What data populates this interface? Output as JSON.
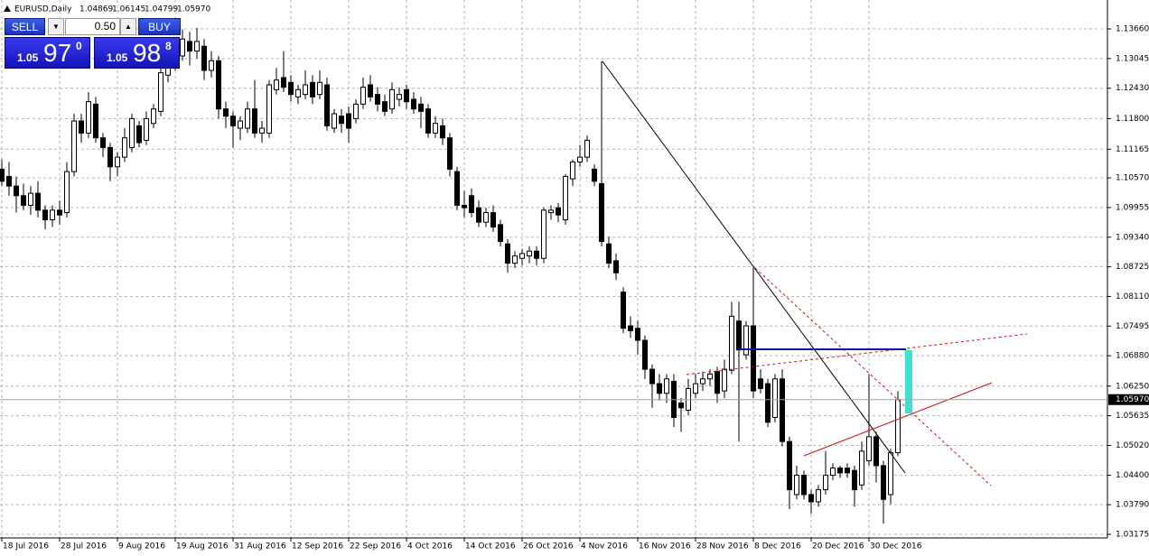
{
  "chart_data": {
    "type": "candlestick",
    "title": "EURUSD,Daily",
    "header_ohlc": [
      "1.04869",
      "1.06145",
      "1.04799",
      "1.05970"
    ],
    "current_price": {
      "value": 1.0597,
      "label": "1.05970"
    },
    "bull_color": "#ffffff",
    "bear_color": "#000000",
    "grid": true,
    "ylim": [
      1.031,
      1.1426
    ],
    "yticks": [
      {
        "value": 1.1366,
        "label": "1.13660"
      },
      {
        "value": 1.13045,
        "label": "1.13045"
      },
      {
        "value": 1.1243,
        "label": "1.12430"
      },
      {
        "value": 1.118,
        "label": "1.11800"
      },
      {
        "value": 1.11165,
        "label": "1.11165"
      },
      {
        "value": 1.1057,
        "label": "1.10570"
      },
      {
        "value": 1.09955,
        "label": "1.09955"
      },
      {
        "value": 1.0934,
        "label": "1.09340"
      },
      {
        "value": 1.08725,
        "label": "1.08725"
      },
      {
        "value": 1.0811,
        "label": "1.08110"
      },
      {
        "value": 1.07495,
        "label": "1.07495"
      },
      {
        "value": 1.0688,
        "label": "1.06880"
      },
      {
        "value": 1.0625,
        "label": "1.06250"
      },
      {
        "value": 1.05635,
        "label": "1.05635"
      },
      {
        "value": 1.0502,
        "label": "1.05020"
      },
      {
        "value": 1.044,
        "label": "1.04400"
      },
      {
        "value": 1.0379,
        "label": "1.03790"
      },
      {
        "value": 1.03175,
        "label": "1.03175"
      }
    ],
    "categories": [
      "18 Jul 2016",
      null,
      null,
      null,
      null,
      null,
      null,
      null,
      "28 Jul 2016",
      null,
      null,
      null,
      null,
      null,
      null,
      null,
      "9 Aug 2016",
      null,
      null,
      null,
      null,
      null,
      null,
      null,
      "19 Aug 2016",
      null,
      null,
      null,
      null,
      null,
      null,
      null,
      "31 Aug 2016",
      null,
      null,
      null,
      null,
      null,
      null,
      null,
      "12 Sep 2016",
      null,
      null,
      null,
      null,
      null,
      null,
      null,
      "22 Sep 2016",
      null,
      null,
      null,
      null,
      null,
      null,
      null,
      "4 Oct 2016",
      null,
      null,
      null,
      null,
      null,
      null,
      null,
      "14 Oct 2016",
      null,
      null,
      null,
      null,
      null,
      null,
      null,
      "26 Oct 2016",
      null,
      null,
      null,
      null,
      null,
      null,
      null,
      "4 Nov 2016",
      null,
      null,
      null,
      null,
      null,
      null,
      null,
      "16 Nov 2016",
      null,
      null,
      null,
      null,
      null,
      null,
      null,
      "28 Nov 2016",
      null,
      null,
      null,
      null,
      null,
      null,
      null,
      "8 Dec 2016",
      null,
      null,
      null,
      null,
      null,
      null,
      null,
      "20 Dec 2016",
      null,
      null,
      null,
      null,
      null,
      null,
      null,
      "30 Dec 2016",
      null,
      null,
      null,
      null
    ],
    "candles": [
      [
        1.1075,
        1.1095,
        1.104,
        1.105
      ],
      [
        1.106,
        1.109,
        1.102,
        1.104
      ],
      [
        1.104,
        1.106,
        1.0985,
        1.102
      ],
      [
        1.102,
        1.1045,
        1.099,
        1.1
      ],
      [
        1.1,
        1.104,
        1.098,
        1.1025
      ],
      [
        1.1025,
        1.105,
        1.0975,
        1.099
      ],
      [
        1.099,
        1.1,
        1.095,
        1.097
      ],
      [
        1.097,
        1.1,
        1.0955,
        1.099
      ],
      [
        1.099,
        1.101,
        1.096,
        1.098
      ],
      [
        1.0985,
        1.109,
        1.0975,
        1.107
      ],
      [
        1.107,
        1.119,
        1.106,
        1.1175
      ],
      [
        1.1175,
        1.119,
        1.113,
        1.115
      ],
      [
        1.115,
        1.1235,
        1.114,
        1.1215
      ],
      [
        1.121,
        1.1225,
        1.113,
        1.114
      ],
      [
        1.114,
        1.115,
        1.11,
        1.112
      ],
      [
        1.112,
        1.113,
        1.105,
        1.108
      ],
      [
        1.108,
        1.111,
        1.106,
        1.11
      ],
      [
        1.11,
        1.116,
        1.109,
        1.114
      ],
      [
        1.112,
        1.119,
        1.111,
        1.118
      ],
      [
        1.1165,
        1.1175,
        1.112,
        1.113
      ],
      [
        1.1135,
        1.1195,
        1.1125,
        1.118
      ],
      [
        1.117,
        1.121,
        1.116,
        1.12
      ],
      [
        1.1195,
        1.13,
        1.1185,
        1.1275
      ],
      [
        1.127,
        1.131,
        1.1255,
        1.13
      ],
      [
        1.1295,
        1.133,
        1.128,
        1.132
      ],
      [
        1.131,
        1.1365,
        1.13,
        1.1345
      ],
      [
        1.134,
        1.136,
        1.129,
        1.132
      ],
      [
        1.132,
        1.1368,
        1.1305,
        1.134
      ],
      [
        1.133,
        1.1345,
        1.126,
        1.128
      ],
      [
        1.128,
        1.132,
        1.1265,
        1.13
      ],
      [
        1.13,
        1.131,
        1.118,
        1.12
      ],
      [
        1.12,
        1.1215,
        1.116,
        1.1185
      ],
      [
        1.1185,
        1.1195,
        1.112,
        1.1165
      ],
      [
        1.116,
        1.1185,
        1.1135,
        1.1175
      ],
      [
        1.116,
        1.1215,
        1.115,
        1.12
      ],
      [
        1.12,
        1.126,
        1.114,
        1.115
      ],
      [
        1.115,
        1.1175,
        1.113,
        1.116
      ],
      [
        1.115,
        1.126,
        1.114,
        1.125
      ],
      [
        1.124,
        1.1285,
        1.123,
        1.126
      ],
      [
        1.1265,
        1.132,
        1.1235,
        1.1245
      ],
      [
        1.1255,
        1.127,
        1.1215,
        1.123
      ],
      [
        1.1225,
        1.125,
        1.121,
        1.124
      ],
      [
        1.123,
        1.128,
        1.122,
        1.125
      ],
      [
        1.1255,
        1.127,
        1.121,
        1.1225
      ],
      [
        1.123,
        1.128,
        1.122,
        1.1255
      ],
      [
        1.125,
        1.1265,
        1.1155,
        1.1165
      ],
      [
        1.116,
        1.12,
        1.115,
        1.119
      ],
      [
        1.1185,
        1.12,
        1.115,
        1.117
      ],
      [
        1.119,
        1.1205,
        1.113,
        1.116
      ],
      [
        1.118,
        1.122,
        1.117,
        1.121
      ],
      [
        1.121,
        1.1265,
        1.12,
        1.1245
      ],
      [
        1.125,
        1.127,
        1.1215,
        1.1225
      ],
      [
        1.123,
        1.1245,
        1.1195,
        1.121
      ],
      [
        1.1215,
        1.123,
        1.1185,
        1.1195
      ],
      [
        1.12,
        1.1255,
        1.119,
        1.124
      ],
      [
        1.122,
        1.1245,
        1.1205,
        1.123
      ],
      [
        1.124,
        1.125,
        1.12,
        1.1215
      ],
      [
        1.122,
        1.1235,
        1.119,
        1.12
      ],
      [
        1.121,
        1.1225,
        1.116,
        1.1195
      ],
      [
        1.12,
        1.121,
        1.114,
        1.115
      ],
      [
        1.115,
        1.1185,
        1.114,
        1.117
      ],
      [
        1.1165,
        1.118,
        1.1125,
        1.114
      ],
      [
        1.114,
        1.115,
        1.106,
        1.1075
      ],
      [
        1.107,
        1.108,
        1.099,
        1.1
      ],
      [
        1.1,
        1.103,
        1.0975,
        1.0995
      ],
      [
        1.102,
        1.1035,
        1.0975,
        1.0985
      ],
      [
        1.0995,
        1.101,
        1.0955,
        1.0965
      ],
      [
        1.0965,
        1.0995,
        1.0955,
        1.0985
      ],
      [
        1.0985,
        1.1,
        1.0945,
        1.0955
      ],
      [
        1.096,
        1.097,
        1.0915,
        1.0925
      ],
      [
        1.092,
        1.093,
        1.086,
        1.088
      ],
      [
        1.088,
        1.0905,
        1.087,
        1.0895
      ],
      [
        1.089,
        1.091,
        1.0875,
        1.09
      ],
      [
        1.0895,
        1.0915,
        1.088,
        1.0905
      ],
      [
        1.0905,
        1.0915,
        1.0875,
        1.089
      ],
      [
        1.089,
        1.0995,
        1.088,
        1.099
      ],
      [
        1.0985,
        1.1,
        1.097,
        1.099
      ],
      [
        1.0995,
        1.1005,
        1.0965,
        1.098
      ],
      [
        1.097,
        1.1065,
        1.096,
        1.106
      ],
      [
        1.1055,
        1.1095,
        1.104,
        1.109
      ],
      [
        1.109,
        1.1125,
        1.108,
        1.11
      ],
      [
        1.11,
        1.1145,
        1.109,
        1.1135
      ],
      [
        1.1075,
        1.1085,
        1.104,
        1.105
      ],
      [
        1.1045,
        1.1299,
        1.0915,
        1.0925
      ],
      [
        1.092,
        1.0935,
        1.087,
        1.088
      ],
      [
        1.0885,
        1.09,
        1.0845,
        1.086
      ],
      [
        1.082,
        1.083,
        1.0735,
        1.0745
      ],
      [
        1.075,
        1.077,
        1.0725,
        1.074
      ],
      [
        1.0745,
        1.076,
        1.069,
        1.072
      ],
      [
        1.072,
        1.073,
        1.064,
        1.066
      ],
      [
        1.066,
        1.067,
        1.058,
        1.063
      ],
      [
        1.063,
        1.065,
        1.0595,
        1.061
      ],
      [
        1.061,
        1.065,
        1.059,
        1.064
      ],
      [
        1.0635,
        1.065,
        1.054,
        1.056
      ],
      [
        1.059,
        1.06,
        1.053,
        1.058
      ],
      [
        1.0575,
        1.064,
        1.0565,
        1.062
      ],
      [
        1.061,
        1.065,
        1.06,
        1.063
      ],
      [
        1.063,
        1.0655,
        1.0615,
        1.064
      ],
      [
        1.064,
        1.066,
        1.0625,
        1.065
      ],
      [
        1.0655,
        1.0665,
        1.059,
        1.061
      ],
      [
        1.0615,
        1.068,
        1.06,
        1.066
      ],
      [
        1.0658,
        1.08,
        1.065,
        1.077
      ],
      [
        1.076,
        1.08,
        1.051,
        1.07
      ],
      [
        1.069,
        1.076,
        1.068,
        1.075
      ],
      [
        1.075,
        1.087,
        1.06,
        1.0615
      ],
      [
        1.064,
        1.066,
        1.061,
        1.062
      ],
      [
        1.063,
        1.064,
        1.054,
        1.055
      ],
      [
        1.056,
        1.065,
        1.055,
        1.064
      ],
      [
        1.064,
        1.066,
        1.05,
        1.051
      ],
      [
        1.051,
        1.052,
        1.037,
        1.041
      ],
      [
        1.04,
        1.046,
        1.039,
        1.044
      ],
      [
        1.044,
        1.045,
        1.039,
        1.04
      ],
      [
        1.04,
        1.041,
        1.036,
        1.0385
      ],
      [
        1.0385,
        1.042,
        1.0375,
        1.041
      ],
      [
        1.041,
        1.049,
        1.04,
        1.044
      ],
      [
        1.044,
        1.0465,
        1.043,
        1.0455
      ],
      [
        1.0455,
        1.046,
        1.0435,
        1.0445
      ],
      [
        1.0455,
        1.0465,
        1.0435,
        1.0445
      ],
      [
        1.045,
        1.046,
        1.0375,
        1.041
      ],
      [
        1.042,
        1.051,
        1.041,
        1.049
      ],
      [
        1.047,
        1.065,
        1.046,
        1.052
      ],
      [
        1.052,
        1.053,
        1.0425,
        1.046
      ],
      [
        1.046,
        1.047,
        1.034,
        1.039
      ],
      [
        1.04,
        1.0495,
        1.038,
        1.0487
      ],
      [
        1.04869,
        1.06145,
        1.04799,
        1.0597
      ]
    ]
  },
  "trade_panel": {
    "sell": "SELL",
    "buy": "BUY",
    "lot": "0.50",
    "sell_big": "1.05",
    "sell_pips": "97",
    "sell_frac": "0",
    "buy_big": "1.05",
    "buy_pips": "98",
    "buy_frac": "8"
  }
}
